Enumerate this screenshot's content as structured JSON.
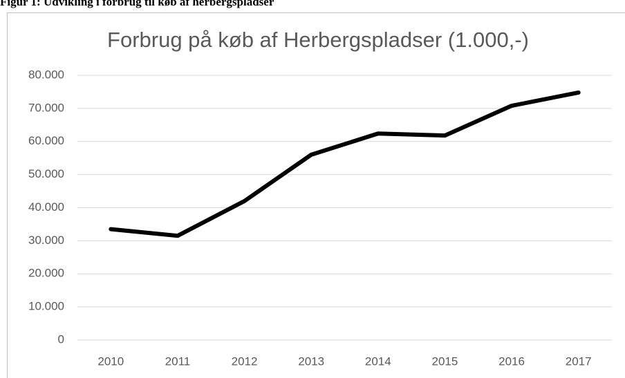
{
  "caption": "Figur 1: Udvikling i forbrug til køb af herbergspladser",
  "chart_data": {
    "type": "line",
    "title": "Forbrug på køb af Herbergspladser (1.000,-)",
    "categories": [
      "2010",
      "2011",
      "2012",
      "2013",
      "2014",
      "2015",
      "2016",
      "2017"
    ],
    "series": [
      {
        "name": "Forbrug",
        "color": "#000000",
        "values": [
          33500,
          31500,
          42000,
          56000,
          62400,
          61800,
          70800,
          74800
        ]
      }
    ],
    "ylim": [
      0,
      80000
    ],
    "yticks": [
      0,
      {
        "value": 10000,
        "label": "10.000"
      },
      {
        "value": 20000,
        "label": "20.000"
      },
      {
        "value": 30000,
        "label": "30.000"
      },
      {
        "value": 40000,
        "label": "40.000"
      },
      {
        "value": 50000,
        "label": "50.000"
      },
      {
        "value": 60000,
        "label": "60.000"
      },
      {
        "value": 70000,
        "label": "70.000"
      },
      {
        "value": 80000,
        "label": "80.000"
      }
    ],
    "grid": true
  }
}
